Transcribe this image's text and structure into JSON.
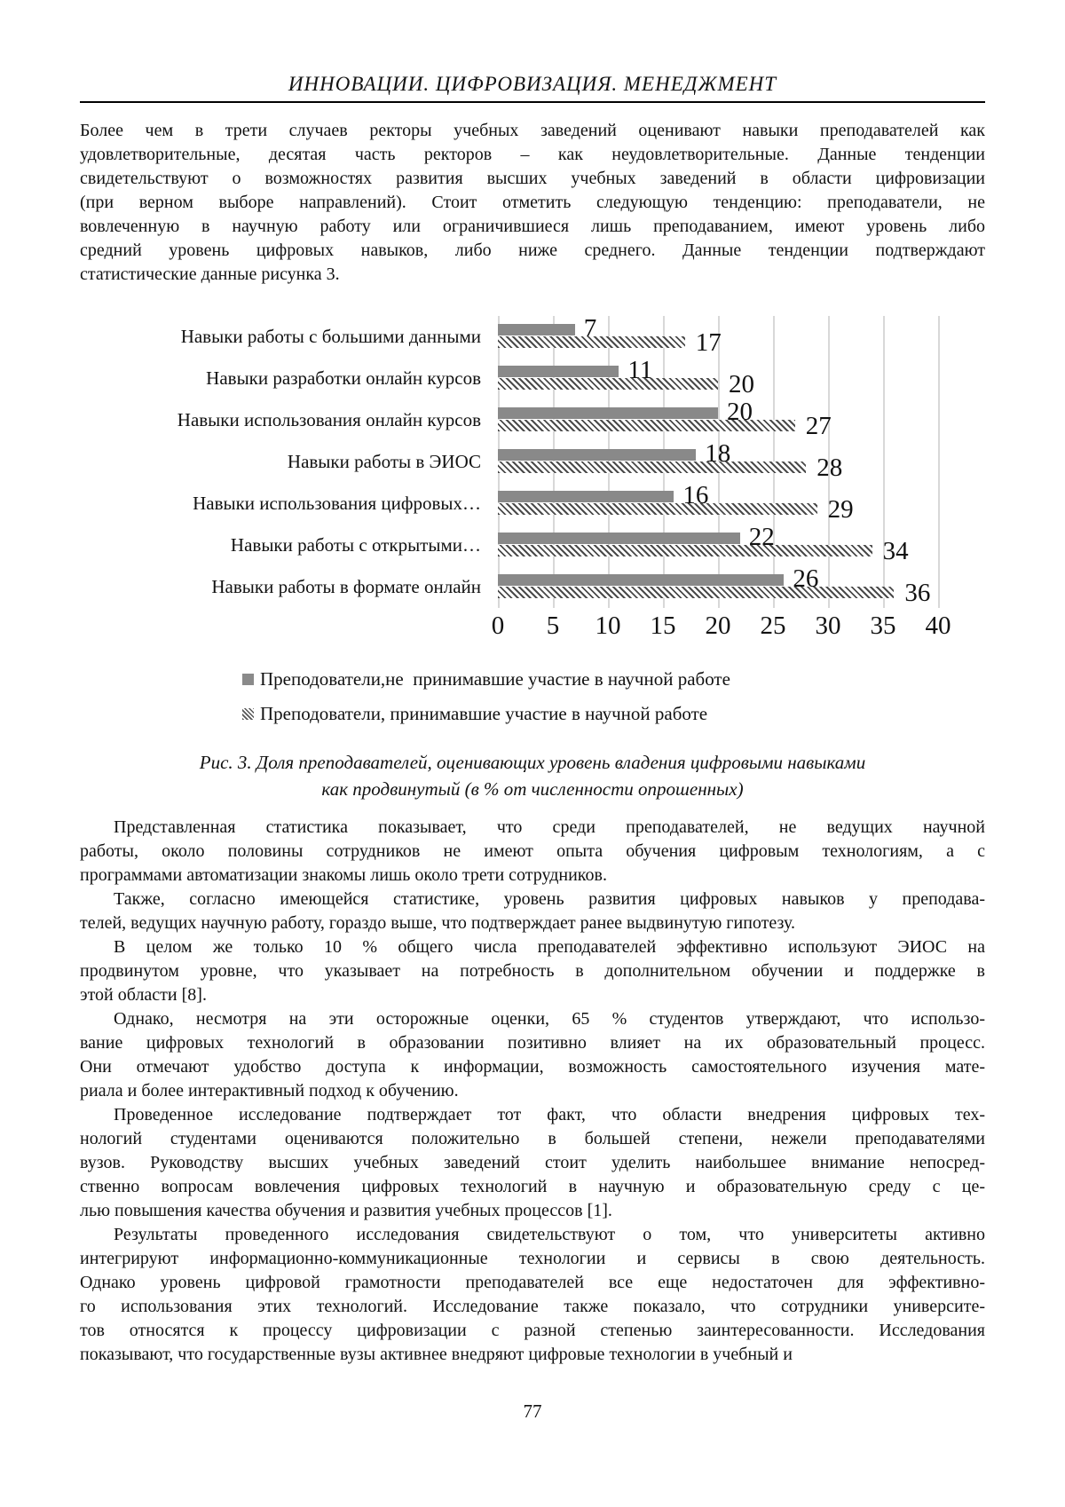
{
  "header": {
    "title": "ИННОВАЦИИ. ЦИФРОВИЗАЦИЯ. МЕНЕДЖМЕНТ"
  },
  "intro_paragraph": {
    "indent": false,
    "lines": [
      "Более чем в трети случаев ректоры учебных заведений оценивают навыки преподавателей как",
      "удовлетворительные, десятая часть ректоров – как неудовлетворительные. Данные тенденции",
      "свидетельствуют о возможностях развития высших учебных заведений в области цифровизации",
      "(при верном выборе направлений). Стоит отметить следующую тенденцию: преподаватели, не",
      "вовлеченную в научную работу или ограничившиеся лишь преподаванием, имеют уровень либо",
      "средний уровень цифровых навыков, либо ниже среднего. Данные тенденции подтверждают",
      "статистические данные рисунка 3."
    ]
  },
  "chart_data": {
    "type": "bar",
    "orientation": "horizontal",
    "categories": [
      "Навыки работы с большими данными",
      "Навыки разработки онлайн курсов",
      "Навыки использования онлайн курсов",
      "Навыки работы в ЭИОС",
      "Навыки использования цифровых…",
      "Навыки работы с открытыми…",
      "Навыки работы в формате онлайн"
    ],
    "series": [
      {
        "name": "Преподователи,не  принимавшие участие в научной работе",
        "style": "solid",
        "values": [
          7,
          11,
          20,
          18,
          16,
          22,
          26
        ]
      },
      {
        "name": "Преподователи, принимавшие участие в научной работе",
        "style": "hatched",
        "values": [
          17,
          20,
          27,
          28,
          29,
          34,
          36
        ]
      }
    ],
    "xlim": [
      0,
      40
    ],
    "xticks": [
      0,
      5,
      10,
      15,
      20,
      25,
      30,
      35,
      40
    ],
    "grid": true,
    "legend_position": "bottom",
    "colors": {
      "solid_bar": "#898989",
      "hatch_stripe": "#4a4a4a",
      "gridline": "#d8d8d8"
    }
  },
  "caption": {
    "line1": "Рис. 3. Доля преподавателей, оценивающих уровень владения цифровыми навыками",
    "line2": "как продвинутый (в % от численности опрошенных)"
  },
  "body_paragraphs": [
    {
      "indent": true,
      "lines": [
        "Представленная статистика показывает, что среди преподавателей, не ведущих научной",
        "работы, около половины сотрудников не имеют опыта обучения цифровым технологиям, а с",
        "программами автоматизации знакомы лишь около трети сотрудников."
      ]
    },
    {
      "indent": true,
      "lines": [
        "Также, согласно имеющейся статистике, уровень развития цифровых навыков у преподава-",
        "телей, ведущих научную работу, гораздо выше, что подтверждает ранее выдвинутую гипотезу."
      ]
    },
    {
      "indent": true,
      "lines": [
        "В целом же только 10 % общего числа преподавателей эффективно используют ЭИОС на",
        "продвинутом уровне, что указывает на потребность в дополнительном обучении и поддержке в",
        "этой области [8]."
      ]
    },
    {
      "indent": true,
      "lines": [
        "Однако, несмотря на эти осторожные оценки, 65 % студентов утверждают, что использо-",
        "вание цифровых технологий в образовании позитивно влияет на их образовательный процесс.",
        "Они отмечают удобство доступа к информации, возможность самостоятельного изучения мате-",
        "риала и более интерактивный подход к обучению."
      ]
    },
    {
      "indent": true,
      "lines": [
        "Проведенное исследование подтверждает тот факт, что области внедрения цифровых тех-",
        "нологий студентами оцениваются положительно в большей степени, нежели преподавателями",
        "вузов. Руководству высших учебных заведений стоит уделить наибольшее внимание непосред-",
        "ственно вопросам вовлечения цифровых технологий в научную и образовательную среду с це-",
        "лью повышения качества обучения и развития учебных процессов [1]."
      ]
    },
    {
      "indent": true,
      "lines": [
        "Результаты проведенного исследования свидетельствуют о том, что университеты активно",
        "интегрируют информационно-коммуникационные технологии и сервисы в свою деятельность.",
        "Однако уровень цифровой грамотности преподавателей все еще недостаточен для эффективно-",
        "го использования этих технологий. Исследование также показало, что сотрудники университе-",
        "тов относятся к процессу цифровизации с разной степенью заинтересованности. Исследования",
        "показывают, что государственные вузы активнее внедряют цифровые технологии в учебный и"
      ]
    }
  ],
  "page": {
    "number": "77"
  }
}
